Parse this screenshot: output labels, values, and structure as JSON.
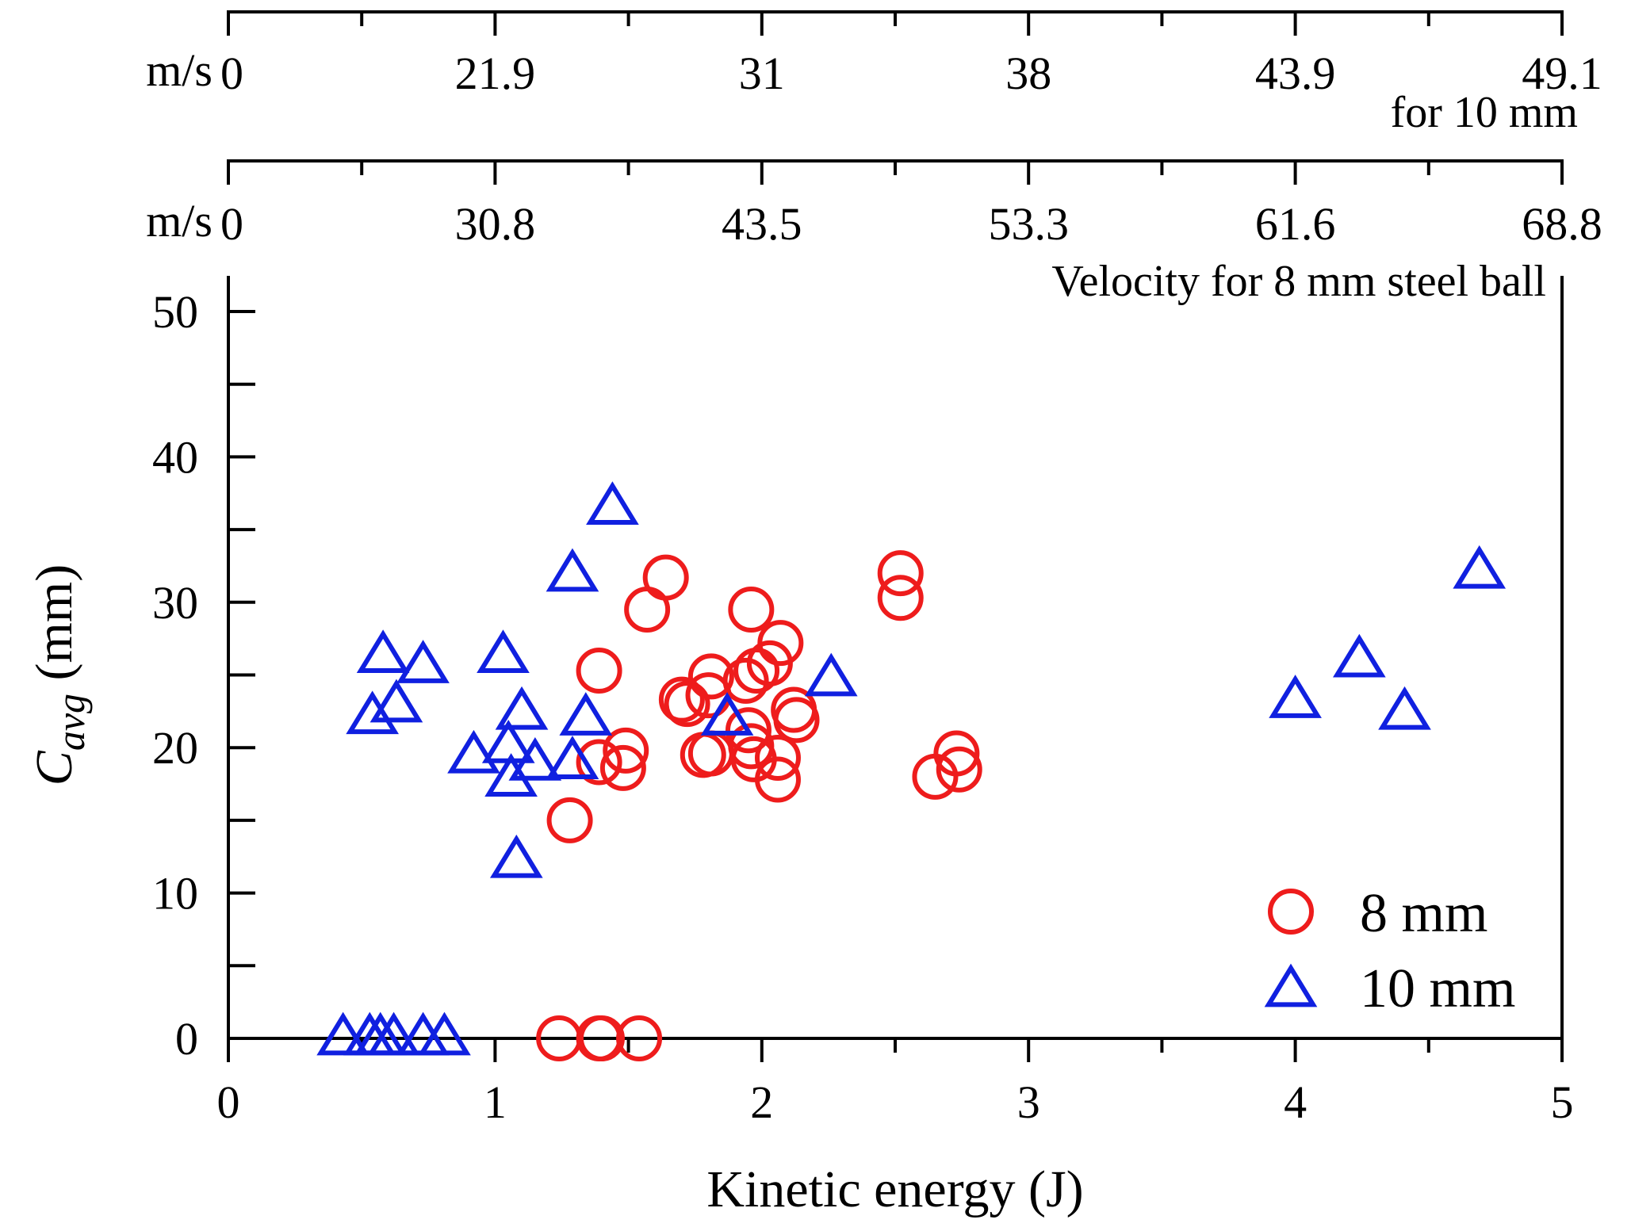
{
  "chart_data": {
    "type": "scatter",
    "title": "",
    "xlabel": "Kinetic energy (J)",
    "ylabel": {
      "main": "C",
      "subscript": "avg",
      "unit": "(mm)"
    },
    "xlim": [
      0,
      5
    ],
    "ylim": [
      0,
      50
    ],
    "x_ticks": [
      "0",
      "1",
      "2",
      "3",
      "4",
      "5"
    ],
    "y_ticks": [
      "0",
      "10",
      "20",
      "30",
      "40",
      "50"
    ],
    "grid": false,
    "legend_position": "bottom-right",
    "secondary_axes": [
      {
        "name": "velocity-10mm",
        "unit": "m/s",
        "caption": "for 10 mm",
        "ticks": [
          {
            "energy": 0,
            "label": "0"
          },
          {
            "energy": 1,
            "label": "21.9"
          },
          {
            "energy": 2,
            "label": "31"
          },
          {
            "energy": 3,
            "label": "38"
          },
          {
            "energy": 4,
            "label": "43.9"
          },
          {
            "energy": 5,
            "label": "49.1"
          }
        ]
      },
      {
        "name": "velocity-8mm",
        "unit": "m/s",
        "caption": "Velocity for 8 mm steel ball",
        "ticks": [
          {
            "energy": 0,
            "label": "0"
          },
          {
            "energy": 1,
            "label": "30.8"
          },
          {
            "energy": 2,
            "label": "43.5"
          },
          {
            "energy": 3,
            "label": "53.3"
          },
          {
            "energy": 4,
            "label": "61.6"
          },
          {
            "energy": 5,
            "label": "68.8"
          }
        ]
      }
    ],
    "series": [
      {
        "name": "8 mm",
        "marker": "circle",
        "color": "#ee1c1c",
        "points": [
          [
            1.24,
            0
          ],
          [
            1.39,
            0
          ],
          [
            1.4,
            0
          ],
          [
            1.54,
            0
          ],
          [
            1.28,
            15.0
          ],
          [
            1.39,
            19.0
          ],
          [
            1.48,
            18.6
          ],
          [
            1.49,
            19.8
          ],
          [
            1.39,
            25.3
          ],
          [
            1.57,
            29.5
          ],
          [
            1.64,
            31.7
          ],
          [
            1.7,
            23.3
          ],
          [
            1.72,
            23.0
          ],
          [
            1.78,
            19.5
          ],
          [
            1.81,
            19.6
          ],
          [
            1.8,
            23.6
          ],
          [
            1.81,
            24.9
          ],
          [
            1.94,
            24.6
          ],
          [
            1.95,
            21.2
          ],
          [
            1.96,
            20.1
          ],
          [
            1.97,
            19.2
          ],
          [
            1.98,
            25.3
          ],
          [
            1.96,
            29.5
          ],
          [
            2.03,
            25.8
          ],
          [
            2.07,
            27.2
          ],
          [
            2.06,
            19.3
          ],
          [
            2.06,
            17.8
          ],
          [
            2.12,
            22.6
          ],
          [
            2.13,
            21.9
          ],
          [
            2.52,
            32.0
          ],
          [
            2.52,
            30.3
          ],
          [
            2.65,
            18.0
          ],
          [
            2.73,
            19.6
          ],
          [
            2.74,
            18.5
          ]
        ]
      },
      {
        "name": "10 mm",
        "marker": "triangle",
        "color": "#1020e0",
        "points": [
          [
            0.43,
            0
          ],
          [
            0.53,
            0
          ],
          [
            0.57,
            0
          ],
          [
            0.62,
            0
          ],
          [
            0.73,
            0
          ],
          [
            0.81,
            0
          ],
          [
            0.54,
            22.1
          ],
          [
            0.58,
            26.3
          ],
          [
            0.63,
            22.9
          ],
          [
            0.73,
            25.6
          ],
          [
            0.92,
            19.4
          ],
          [
            1.03,
            26.3
          ],
          [
            1.05,
            20.1
          ],
          [
            1.06,
            17.8
          ],
          [
            1.1,
            22.4
          ],
          [
            1.15,
            18.9
          ],
          [
            1.08,
            12.2
          ],
          [
            1.29,
            31.9
          ],
          [
            1.29,
            19.0
          ],
          [
            1.34,
            22.0
          ],
          [
            1.44,
            36.5
          ],
          [
            1.87,
            22.0
          ],
          [
            2.26,
            24.7
          ],
          [
            4.0,
            23.2
          ],
          [
            4.24,
            26.0
          ],
          [
            4.41,
            22.4
          ],
          [
            4.69,
            32.1
          ]
        ]
      }
    ]
  },
  "legend": [
    {
      "label": "8 mm",
      "marker": "circle",
      "color": "#ee1c1c"
    },
    {
      "label": "10 mm",
      "marker": "triangle",
      "color": "#1020e0"
    }
  ]
}
